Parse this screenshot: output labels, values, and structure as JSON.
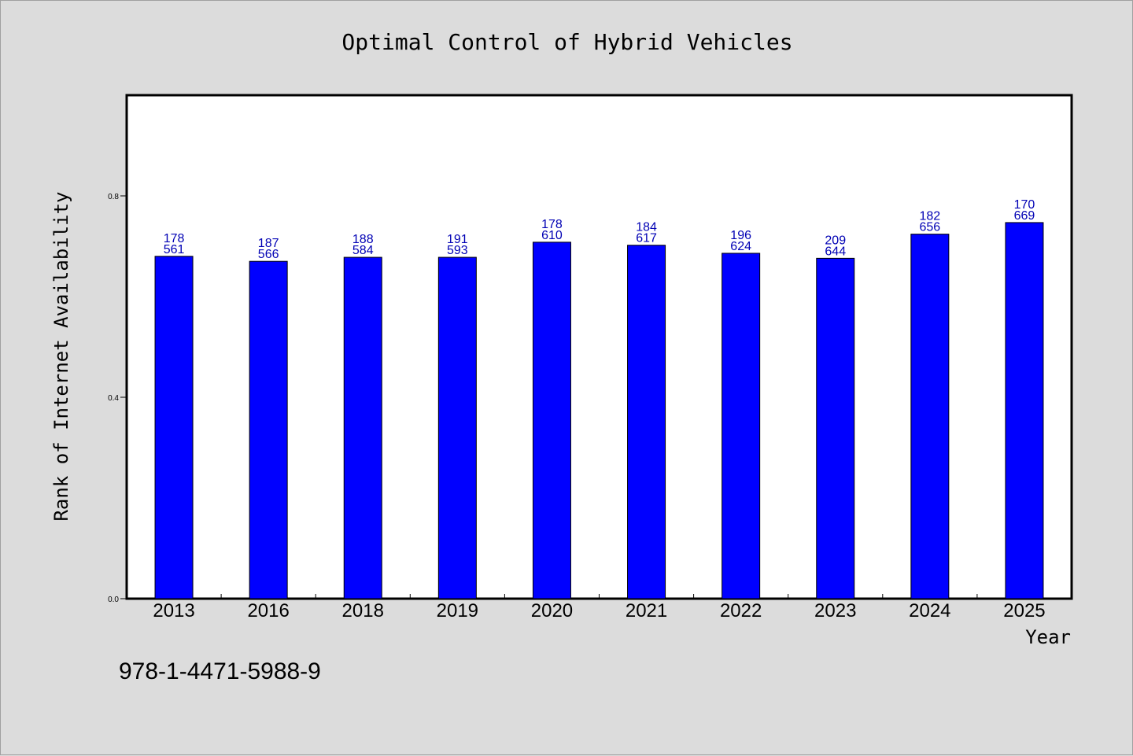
{
  "chart_data": {
    "type": "bar",
    "title": "Optimal Control of Hybrid Vehicles",
    "xlabel": "Year",
    "ylabel": "Rank of Internet Availability",
    "categories": [
      "2013",
      "2016",
      "2018",
      "2019",
      "2020",
      "2021",
      "2022",
      "2023",
      "2024",
      "2025"
    ],
    "values": [
      0.68,
      0.67,
      0.678,
      0.678,
      0.708,
      0.702,
      0.686,
      0.676,
      0.724,
      0.747
    ],
    "data_labels": [
      [
        "178",
        "561"
      ],
      [
        "187",
        "566"
      ],
      [
        "188",
        "584"
      ],
      [
        "191",
        "593"
      ],
      [
        "178",
        "610"
      ],
      [
        "184",
        "617"
      ],
      [
        "196",
        "624"
      ],
      [
        "209",
        "644"
      ],
      [
        "182",
        "656"
      ],
      [
        "170",
        "669"
      ]
    ],
    "yticks": [
      "0.0",
      "0.4",
      "0.8"
    ],
    "ylim": [
      0,
      1.0
    ],
    "grid": false,
    "legend": "none",
    "bar_color": "#0000ff",
    "label_color": "#0000b4",
    "annotation": "978-1-4471-5988-9"
  }
}
